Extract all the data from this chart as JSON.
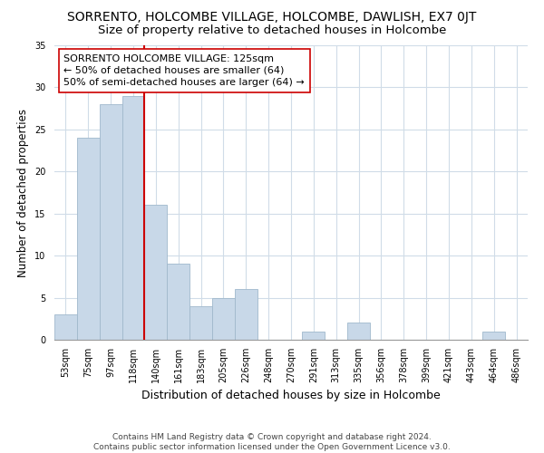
{
  "title": "SORRENTO, HOLCOMBE VILLAGE, HOLCOMBE, DAWLISH, EX7 0JT",
  "subtitle": "Size of property relative to detached houses in Holcombe",
  "xlabel": "Distribution of detached houses by size in Holcombe",
  "ylabel": "Number of detached properties",
  "bar_labels": [
    "53sqm",
    "75sqm",
    "97sqm",
    "118sqm",
    "140sqm",
    "161sqm",
    "183sqm",
    "205sqm",
    "226sqm",
    "248sqm",
    "270sqm",
    "291sqm",
    "313sqm",
    "335sqm",
    "356sqm",
    "378sqm",
    "399sqm",
    "421sqm",
    "443sqm",
    "464sqm",
    "486sqm"
  ],
  "bar_values": [
    3,
    24,
    28,
    29,
    16,
    9,
    4,
    5,
    6,
    0,
    0,
    1,
    0,
    2,
    0,
    0,
    0,
    0,
    0,
    1,
    0
  ],
  "bar_color": "#c8d8e8",
  "bar_edge_color": "#a0b8cc",
  "vline_color": "#cc0000",
  "annotation_text": "SORRENTO HOLCOMBE VILLAGE: 125sqm\n← 50% of detached houses are smaller (64)\n50% of semi-detached houses are larger (64) →",
  "annotation_box_edgecolor": "#cc0000",
  "ylim": [
    0,
    35
  ],
  "yticks": [
    0,
    5,
    10,
    15,
    20,
    25,
    30,
    35
  ],
  "footer": "Contains HM Land Registry data © Crown copyright and database right 2024.\nContains public sector information licensed under the Open Government Licence v3.0.",
  "bg_color": "#ffffff",
  "grid_color": "#d0dce8",
  "title_fontsize": 10,
  "subtitle_fontsize": 9.5,
  "xlabel_fontsize": 9,
  "ylabel_fontsize": 8.5,
  "tick_fontsize": 7,
  "annotation_fontsize": 8,
  "footer_fontsize": 6.5
}
